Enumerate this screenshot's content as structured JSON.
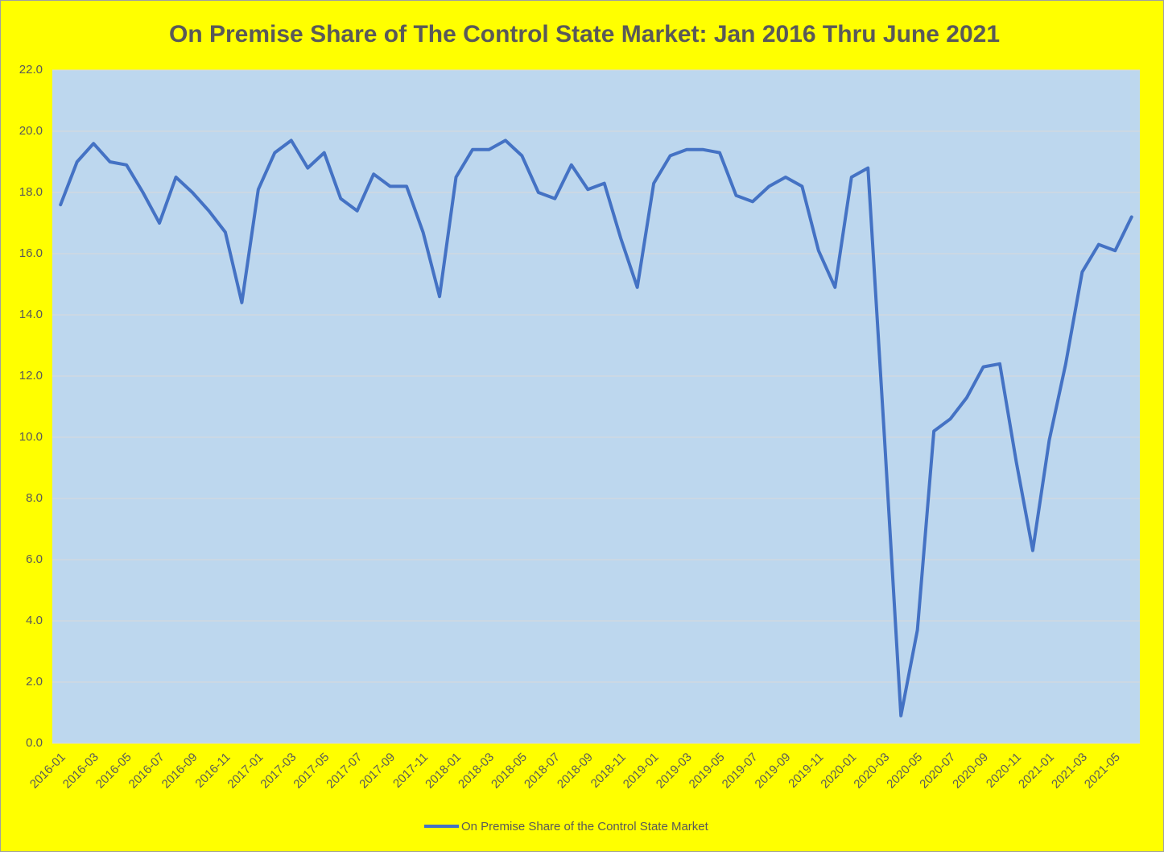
{
  "chart_data": {
    "type": "line",
    "title": "On Premise Share of The Control State Market: Jan 2016 Thru June 2021",
    "categories": [
      "2016-01",
      null,
      "2016-03",
      null,
      "2016-05",
      null,
      "2016-07",
      null,
      "2016-09",
      null,
      "2016-11",
      null,
      "2017-01",
      null,
      "2017-03",
      null,
      "2017-05",
      null,
      "2017-07",
      null,
      "2017-09",
      null,
      "2017-11",
      null,
      "2018-01",
      null,
      "2018-03",
      null,
      "2018-05",
      null,
      "2018-07",
      null,
      "2018-09",
      null,
      "2018-11",
      null,
      "2019-01",
      null,
      "2019-03",
      null,
      "2019-05",
      null,
      "2019-07",
      null,
      "2019-09",
      null,
      "2019-11",
      null,
      "2020-01",
      null,
      "2020-03",
      null,
      "2020-05",
      null,
      "2020-07",
      null,
      "2020-09",
      null,
      "2020-11",
      null,
      "2021-01",
      null,
      "2021-03",
      null,
      "2021-05",
      null
    ],
    "series": [
      {
        "name": "On Premise Share of the Control State Market",
        "color": "#4472c4",
        "values": [
          17.6,
          19.0,
          19.6,
          19.0,
          18.9,
          18.0,
          17.0,
          18.5,
          18.0,
          17.4,
          16.7,
          14.4,
          18.1,
          19.3,
          19.7,
          18.8,
          19.3,
          17.8,
          17.4,
          18.6,
          18.2,
          18.2,
          16.7,
          14.6,
          18.5,
          19.4,
          19.4,
          19.7,
          19.2,
          18.0,
          17.8,
          18.9,
          18.1,
          18.3,
          16.5,
          14.9,
          18.3,
          19.2,
          19.4,
          19.4,
          19.3,
          17.9,
          17.7,
          18.2,
          18.5,
          18.2,
          16.1,
          14.9,
          18.5,
          18.8,
          10.0,
          0.9,
          3.7,
          10.2,
          10.6,
          11.3,
          12.3,
          12.4,
          9.2,
          6.3,
          9.9,
          12.4,
          15.4,
          16.3,
          16.1,
          17.2
        ]
      }
    ],
    "ylim": [
      0,
      22
    ],
    "yticks": [
      {
        "value": 0,
        "label": "0.0"
      },
      {
        "value": 2,
        "label": "2.0"
      },
      {
        "value": 4,
        "label": "4.0"
      },
      {
        "value": 6,
        "label": "6.0"
      },
      {
        "value": 8,
        "label": "8.0"
      },
      {
        "value": 10,
        "label": "10.0"
      },
      {
        "value": 12,
        "label": "12.0"
      },
      {
        "value": 14,
        "label": "14.0"
      },
      {
        "value": 16,
        "label": "16.0"
      },
      {
        "value": 18,
        "label": "18.0"
      },
      {
        "value": 20,
        "label": "20.0"
      },
      {
        "value": 22,
        "label": "22.0"
      }
    ],
    "grid": true,
    "legend": "bottom"
  }
}
